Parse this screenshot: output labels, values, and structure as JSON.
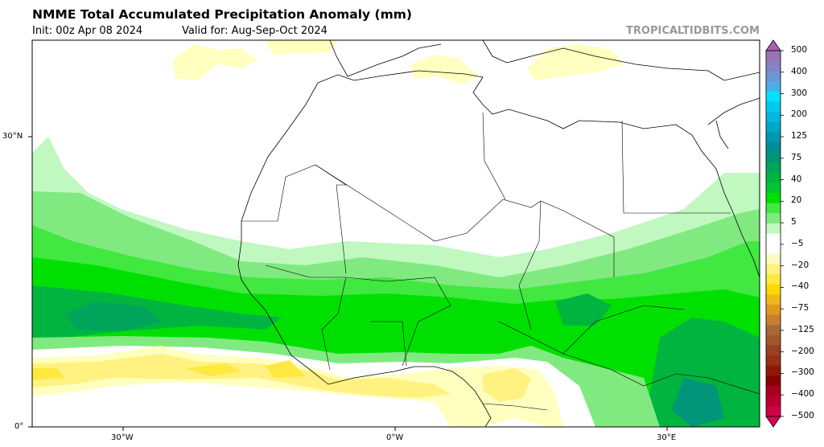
{
  "header": {
    "title": "NMME Total Accumulated Precipitation Anomaly (mm)",
    "init": "Init: 00z Apr 08 2024",
    "valid": "Valid for: Aug-Sep-Oct 2024",
    "brand": "TROPICALTIDBITS.COM"
  },
  "axes": {
    "lat_labels": [
      "30°N",
      "0°"
    ],
    "lon_labels": [
      "30°W",
      "0°W",
      "30°E"
    ]
  },
  "colorbar": {
    "labels": [
      "500",
      "400",
      "300",
      "200",
      "125",
      "75",
      "40",
      "20",
      "5",
      "−5",
      "−20",
      "−40",
      "−75",
      "−125",
      "−200",
      "−300",
      "−400",
      "−500"
    ],
    "top_extend_color": "#b060b0",
    "bottom_extend_color": "#e0005a",
    "colors": [
      "#9a72b6",
      "#8a80c4",
      "#6c96d2",
      "#4caee2",
      "#00e0ff",
      "#00cbee",
      "#00b9e0",
      "#00a8c8",
      "#0098b0",
      "#008c98",
      "#009478",
      "#00a45a",
      "#00b440",
      "#00c830",
      "#00e000",
      "#40e840",
      "#80ea80",
      "#c0f8c0",
      "#ffffff",
      "#ffffff",
      "#fffac0",
      "#fff280",
      "#ffe840",
      "#ffd800",
      "#f0b818",
      "#e09820",
      "#c88030",
      "#a86838",
      "#a05828",
      "#984020",
      "#983018",
      "#901808",
      "#880000",
      "#a80020",
      "#b80030",
      "#d00048"
    ]
  }
}
